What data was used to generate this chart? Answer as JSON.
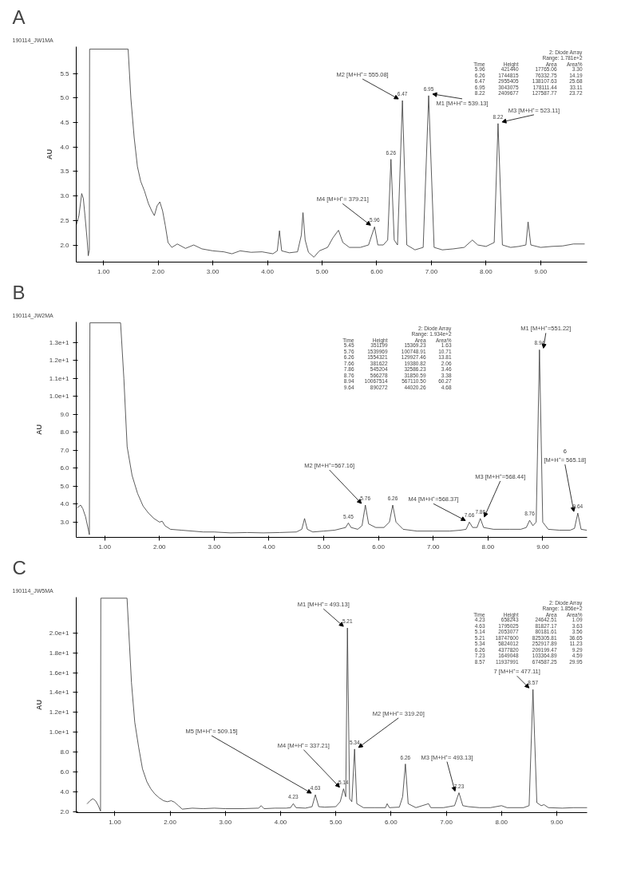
{
  "chart_data": [
    {
      "type": "line",
      "title": "A",
      "subtitle": "190114_JW1MA",
      "ylabel": "AU",
      "grid": false,
      "xlim": [
        0.5,
        9.85
      ],
      "ylim": [
        1.65,
        6.05
      ],
      "xticks": [
        {
          "value": 1,
          "label": "1.00"
        },
        {
          "value": 2,
          "label": "2.00"
        },
        {
          "value": 3,
          "label": "3.00"
        },
        {
          "value": 4,
          "label": "4.00"
        },
        {
          "value": 5,
          "label": "5.00"
        },
        {
          "value": 6,
          "label": "6.00"
        },
        {
          "value": 7,
          "label": "7.00"
        },
        {
          "value": 8,
          "label": "8.00"
        },
        {
          "value": 9,
          "label": "9.00"
        }
      ],
      "yticks": [
        {
          "value": 2,
          "label": "2.0"
        },
        {
          "value": 2.5,
          "label": "2.5"
        },
        {
          "value": 3,
          "label": "3.0"
        },
        {
          "value": 3.5,
          "label": "3.5"
        },
        {
          "value": 4,
          "label": "4.0"
        },
        {
          "value": 4.5,
          "label": "4.5"
        },
        {
          "value": 5,
          "label": "5.0"
        },
        {
          "value": 5.5,
          "label": "5.5"
        }
      ],
      "series": [
        {
          "color": "#333333",
          "x": [
            0.5,
            0.55,
            0.6,
            0.63,
            0.66,
            0.7,
            0.72,
            0.74,
            0.745,
            1.45,
            1.5,
            1.56,
            1.62,
            1.68,
            1.75,
            1.82,
            1.88,
            1.93,
            1.98,
            2.03,
            2.08,
            2.13,
            2.18,
            2.25,
            2.35,
            2.5,
            2.65,
            2.8,
            3.0,
            3.2,
            3.35,
            3.5,
            3.7,
            3.9,
            4.1,
            4.18,
            4.22,
            4.26,
            4.4,
            4.55,
            4.62,
            4.65,
            4.69,
            4.75,
            4.85,
            4.95,
            5.1,
            5.2,
            5.3,
            5.38,
            5.5,
            5.7,
            5.85,
            5.96,
            6.02,
            6.12,
            6.2,
            6.26,
            6.32,
            6.38,
            6.47,
            6.55,
            6.7,
            6.85,
            6.95,
            7.05,
            7.2,
            7.4,
            7.6,
            7.75,
            7.85,
            8.0,
            8.15,
            8.22,
            8.3,
            8.45,
            8.6,
            8.73,
            8.77,
            8.82,
            9.0,
            9.2,
            9.4,
            9.6,
            9.8
          ],
          "values": [
            2.4,
            2.6,
            3.05,
            2.95,
            2.6,
            2.1,
            1.78,
            1.9,
            6.0,
            6.0,
            5.0,
            4.2,
            3.6,
            3.3,
            3.1,
            2.85,
            2.7,
            2.6,
            2.8,
            2.88,
            2.7,
            2.4,
            2.05,
            1.95,
            2.02,
            1.93,
            2.0,
            1.92,
            1.88,
            1.86,
            1.82,
            1.88,
            1.85,
            1.86,
            1.82,
            1.88,
            2.29,
            1.88,
            1.84,
            1.86,
            2.2,
            2.66,
            2.1,
            1.85,
            1.75,
            1.88,
            1.95,
            2.15,
            2.3,
            2.05,
            1.95,
            1.95,
            2.0,
            2.37,
            2.0,
            2.0,
            2.1,
            3.75,
            2.1,
            2.0,
            4.95,
            2.0,
            1.9,
            1.95,
            5.05,
            1.95,
            1.9,
            1.92,
            1.95,
            2.1,
            2.0,
            1.97,
            2.05,
            4.48,
            2.0,
            1.95,
            1.97,
            2.0,
            2.47,
            2.0,
            1.95,
            1.97,
            1.98,
            2.02,
            2.02
          ]
        }
      ],
      "annotations": [
        {
          "text": "M2 [M+H⁺= 555.08]",
          "x": 6.47,
          "y": 4.95
        },
        {
          "text": "M1 [M+H⁺= 539.13]",
          "x": 6.95,
          "y": 5.05
        },
        {
          "text": "M3 [M+H⁺= 523.11]",
          "x": 8.22,
          "y": 4.48
        },
        {
          "text": "M4 [M+H⁺= 379.21]",
          "x": 5.96,
          "y": 2.37
        },
        {
          "text": "5.96",
          "x": 5.96,
          "y": 2.37
        },
        {
          "text": "6.26",
          "x": 6.26,
          "y": 3.75
        },
        {
          "text": "6.47",
          "x": 6.47,
          "y": 4.95
        },
        {
          "text": "6.95",
          "x": 6.95,
          "y": 5.05
        },
        {
          "text": "8.22",
          "x": 8.22,
          "y": 4.48
        },
        "2: Diode Array",
        "Range: 1.781e+2",
        "Time Height Area Area%",
        "5.96 421440 17765.06 3.30",
        "6.26 1744815 76332.75 14.19",
        "6.47 2955405 138107.63 25.68",
        "6.95 3043075 178111.44 33.11",
        "8.22 2409677 127587.77 23.72"
      ]
    },
    {
      "type": "line",
      "title": "B",
      "subtitle": "190114_JW2MA",
      "ylabel": "AU",
      "grid": false,
      "xlim": [
        0.48,
        9.81
      ],
      "ylim": [
        2.15,
        14.15
      ],
      "xticks": [
        {
          "value": 1,
          "label": "1.00"
        },
        {
          "value": 2,
          "label": "2.00"
        },
        {
          "value": 3,
          "label": "3.00"
        },
        {
          "value": 4,
          "label": "4.00"
        },
        {
          "value": 5,
          "label": "5.00"
        },
        {
          "value": 6,
          "label": "6.00"
        },
        {
          "value": 7,
          "label": "7.00"
        },
        {
          "value": 8,
          "label": "8.00"
        },
        {
          "value": 9,
          "label": "9.00"
        }
      ],
      "yticks": [
        {
          "value": 3,
          "label": "3.0"
        },
        {
          "value": 4,
          "label": "4.0"
        },
        {
          "value": 5,
          "label": "5.0"
        },
        {
          "value": 6,
          "label": "6.0"
        },
        {
          "value": 7,
          "label": "7.0"
        },
        {
          "value": 8,
          "label": "8.0"
        },
        {
          "value": 9,
          "label": "9.0"
        },
        {
          "value": 10,
          "label": "1.0e+1"
        },
        {
          "value": 11,
          "label": "1.1e+1"
        },
        {
          "value": 12,
          "label": "1.2e+1"
        },
        {
          "value": 13,
          "label": "1.3e+1"
        }
      ],
      "series": [
        {
          "color": "#333333",
          "x": [
            0.5,
            0.56,
            0.6,
            0.65,
            0.7,
            0.72,
            0.73,
            1.29,
            1.35,
            1.41,
            1.5,
            1.6,
            1.7,
            1.8,
            1.9,
            2.0,
            2.05,
            2.1,
            2.2,
            2.4,
            2.6,
            2.8,
            3.0,
            3.3,
            3.6,
            3.9,
            4.2,
            4.5,
            4.6,
            4.65,
            4.7,
            4.8,
            5.0,
            5.2,
            5.4,
            5.45,
            5.5,
            5.62,
            5.7,
            5.76,
            5.82,
            5.95,
            6.1,
            6.2,
            6.26,
            6.32,
            6.45,
            6.7,
            7.0,
            7.3,
            7.5,
            7.6,
            7.66,
            7.72,
            7.8,
            7.86,
            7.92,
            8.1,
            8.4,
            8.6,
            8.7,
            8.76,
            8.82,
            8.88,
            8.94,
            9.0,
            9.1,
            9.3,
            9.5,
            9.58,
            9.64,
            9.7,
            9.8
          ],
          "values": [
            3.8,
            3.95,
            3.75,
            3.3,
            2.6,
            2.3,
            14.1,
            14.1,
            11.0,
            7.2,
            5.6,
            4.6,
            3.9,
            3.5,
            3.2,
            3.0,
            3.05,
            2.8,
            2.6,
            2.55,
            2.5,
            2.45,
            2.45,
            2.4,
            2.42,
            2.4,
            2.42,
            2.45,
            2.6,
            3.2,
            2.6,
            2.45,
            2.5,
            2.55,
            2.7,
            2.95,
            2.7,
            2.6,
            2.8,
            3.95,
            2.9,
            2.7,
            2.7,
            3.0,
            3.95,
            3.0,
            2.6,
            2.5,
            2.5,
            2.5,
            2.55,
            2.6,
            3.0,
            2.7,
            2.7,
            3.2,
            2.7,
            2.6,
            2.6,
            2.6,
            2.7,
            3.1,
            2.8,
            3.0,
            12.6,
            3.0,
            2.6,
            2.55,
            2.55,
            2.65,
            3.5,
            2.6,
            2.55
          ]
        }
      ],
      "annotations": [
        {
          "text": "M1 [M+H⁺=551.22]",
          "x": 8.94,
          "y": 12.6
        },
        {
          "text": "M2 [M+H⁺=567.16]",
          "x": 5.76,
          "y": 3.95
        },
        {
          "text": "M4 [M+H⁺=568.37]",
          "x": 7.66,
          "y": 3.0
        },
        {
          "text": "M3 [M+H⁺=568.44]",
          "x": 7.86,
          "y": 3.2
        },
        {
          "text": "6 [M+H⁺= 565.18]",
          "x": 9.64,
          "y": 3.5
        },
        {
          "text": "5.45",
          "x": 5.45,
          "y": 2.95
        },
        {
          "text": "5.76",
          "x": 5.76,
          "y": 3.95
        },
        {
          "text": "6.26",
          "x": 6.26,
          "y": 3.95
        },
        {
          "text": "7.66",
          "x": 7.66,
          "y": 3.0
        },
        {
          "text": "7.86",
          "x": 7.86,
          "y": 3.2
        },
        {
          "text": "8.76",
          "x": 8.76,
          "y": 3.1
        },
        {
          "text": "8.94",
          "x": 8.94,
          "y": 12.6
        },
        {
          "text": "9.64",
          "x": 9.64,
          "y": 3.5
        },
        "2: Diode Array",
        "Range: 1.934e+2",
        "Time Height Area Area%",
        "5.45 351199 15369.23 1.63",
        "5.76 1539969 100748.91 10.71",
        "6.26 1554321 129927.46 13.81",
        "7.66 381622 19380.82 2.06",
        "7.86 545204 32586.23 3.46",
        "8.76 566278 31850.59 3.38",
        "8.94 10067514 567110.50 60.27",
        "9.64 890272 44020.26 4.68"
      ]
    },
    {
      "type": "line",
      "title": "C",
      "subtitle": "190114_JW5MA",
      "ylabel": "AU",
      "grid": false,
      "xlim": [
        0.3,
        9.55
      ],
      "ylim": [
        1.9,
        23.6
      ],
      "xticks": [
        {
          "value": 1,
          "label": "1.00"
        },
        {
          "value": 2,
          "label": "2.00"
        },
        {
          "value": 3,
          "label": "3.00"
        },
        {
          "value": 4,
          "label": "4.00"
        },
        {
          "value": 5,
          "label": "5.00"
        },
        {
          "value": 6,
          "label": "6.00"
        },
        {
          "value": 7,
          "label": "7.00"
        },
        {
          "value": 8,
          "label": "8.00"
        },
        {
          "value": 9,
          "label": "9.00"
        }
      ],
      "yticks": [
        {
          "value": 2,
          "label": "2.0"
        },
        {
          "value": 4,
          "label": "4.0"
        },
        {
          "value": 6,
          "label": "6.0"
        },
        {
          "value": 8,
          "label": "8.0"
        },
        {
          "value": 10,
          "label": "1.0e+1"
        },
        {
          "value": 12,
          "label": "1.2e+1"
        },
        {
          "value": 14,
          "label": "1.4e+1"
        },
        {
          "value": 16,
          "label": "1.6e+1"
        },
        {
          "value": 18,
          "label": "1.8e+1"
        },
        {
          "value": 20,
          "label": "2.0e+1"
        }
      ],
      "series": [
        {
          "color": "#333333",
          "x": [
            0.5,
            0.55,
            0.6,
            0.65,
            0.7,
            0.74,
            0.745,
            1.22,
            1.3,
            1.36,
            1.43,
            1.5,
            1.58,
            1.65,
            1.72,
            1.8,
            1.88,
            1.95,
            2.02,
            2.08,
            2.15,
            2.22,
            2.4,
            2.6,
            2.8,
            3.0,
            3.3,
            3.6,
            3.65,
            3.7,
            3.9,
            4.1,
            4.18,
            4.23,
            4.28,
            4.45,
            4.57,
            4.63,
            4.69,
            4.8,
            5.0,
            5.08,
            5.14,
            5.18,
            5.21,
            5.25,
            5.29,
            5.34,
            5.38,
            5.5,
            5.7,
            5.9,
            5.93,
            5.97,
            6.15,
            6.21,
            6.26,
            6.31,
            6.45,
            6.68,
            6.72,
            6.95,
            7.15,
            7.23,
            7.3,
            7.4,
            7.6,
            7.8,
            8.0,
            8.1,
            8.4,
            8.5,
            8.57,
            8.64,
            8.72,
            8.77,
            8.85,
            9.1,
            9.3,
            9.55
          ],
          "values": [
            2.8,
            3.1,
            3.3,
            3.1,
            2.6,
            2.05,
            23.5,
            23.5,
            15.0,
            11.0,
            8.5,
            6.3,
            5.0,
            4.3,
            3.8,
            3.4,
            3.1,
            3.0,
            3.1,
            2.95,
            2.6,
            2.25,
            2.35,
            2.3,
            2.35,
            2.3,
            2.3,
            2.35,
            2.6,
            2.3,
            2.35,
            2.35,
            2.4,
            2.8,
            2.4,
            2.35,
            2.5,
            3.7,
            2.5,
            2.45,
            2.5,
            3.0,
            4.3,
            3.5,
            20.5,
            3.3,
            3.0,
            8.3,
            2.8,
            2.4,
            2.4,
            2.4,
            2.8,
            2.4,
            2.45,
            3.5,
            6.8,
            2.8,
            2.4,
            2.8,
            2.4,
            2.4,
            2.6,
            3.9,
            2.6,
            2.5,
            2.4,
            2.4,
            2.6,
            2.4,
            2.4,
            2.6,
            14.3,
            2.9,
            2.6,
            2.7,
            2.4,
            2.35,
            2.4,
            2.4
          ]
        }
      ],
      "annotations": [
        {
          "text": "M1 [M+H⁺= 493.13]",
          "x": 5.21,
          "y": 20.5
        },
        {
          "text": "7 [M+H⁺= 477.11]",
          "x": 8.57,
          "y": 14.3
        },
        {
          "text": "M2 [M+H⁺= 319.20]",
          "x": 5.34,
          "y": 8.3
        },
        {
          "text": "M5 [M+H⁺= 509.15]",
          "x": 4.63,
          "y": 3.7
        },
        {
          "text": "M4 [M+H⁺= 337.21]",
          "x": 5.14,
          "y": 4.3
        },
        {
          "text": "M3 [M+H⁺= 493.13]",
          "x": 7.23,
          "y": 3.9
        },
        {
          "text": "4.23",
          "x": 4.23,
          "y": 2.8
        },
        {
          "text": "4.63",
          "x": 4.63,
          "y": 3.7
        },
        {
          "text": "5.14",
          "x": 5.14,
          "y": 4.3
        },
        {
          "text": "5.21",
          "x": 5.21,
          "y": 20.5
        },
        {
          "text": "5.34",
          "x": 5.34,
          "y": 8.3
        },
        {
          "text": "6.26",
          "x": 6.26,
          "y": 6.8
        },
        {
          "text": "7.23",
          "x": 7.23,
          "y": 3.9
        },
        {
          "text": "8.57",
          "x": 8.57,
          "y": 14.3
        },
        "2: Diode Array",
        "Range: 1.856e+2",
        "Time Height Area Area%",
        "4.23 658243 24642.51 1.09",
        "4.63 1795025 81827.17 3.63",
        "5.14 2053077 80181.61 3.56",
        "5.21 18747600 825305.81 36.65",
        "5.34 5824012 252917.89 11.23",
        "6.26 4377820 209199.47 9.29",
        "7.23 1649048 103364.89 4.59",
        "8.57 11937991 674587.25 29.95"
      ]
    }
  ]
}
